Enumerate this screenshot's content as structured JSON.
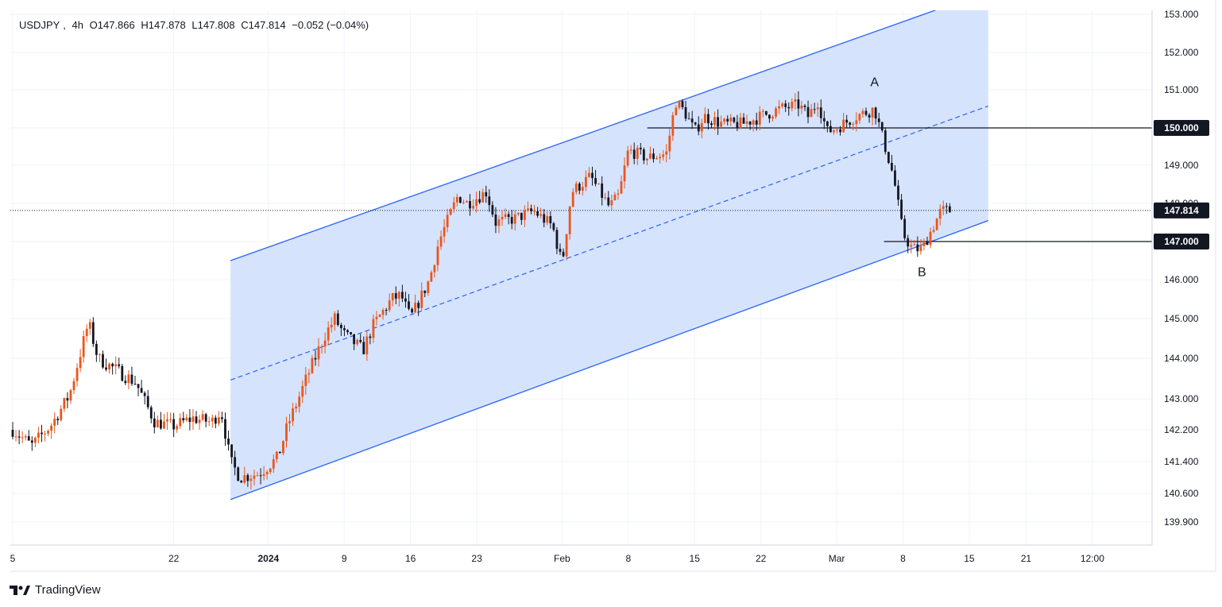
{
  "header": {
    "symbol": "USDJPY",
    "interval": "4h",
    "open": "O147.866",
    "high": "H147.878",
    "low": "L147.808",
    "close": "C147.814",
    "change": "−0.052 (−0.04%)"
  },
  "brand": "TradingView",
  "colors": {
    "up": "#e8571b",
    "down": "#131722",
    "channel_fill": "#d4e1fd",
    "channel_line": "#2962ff",
    "grid": "#f0f3fa"
  },
  "chart_data": {
    "type": "candlestick",
    "title": "USDJPY, 4h",
    "y_axis_ticks": [
      "153.000",
      "152.000",
      "151.000",
      "150.000",
      "149.000",
      "148.000",
      "147.000",
      "146.000",
      "145.000",
      "144.000",
      "143.000",
      "142.200",
      "141.400",
      "140.600",
      "139.900"
    ],
    "x_axis_ticks": [
      "5",
      "22",
      "2024",
      "9",
      "16",
      "23",
      "Feb",
      "8",
      "15",
      "22",
      "Mar",
      "8",
      "15",
      "21",
      "12:00"
    ],
    "price_labels": [
      {
        "name": "last",
        "text": "147.814",
        "value": 147.814
      },
      {
        "name": "level-150",
        "text": "150.000",
        "value": 150.0
      },
      {
        "name": "level-147",
        "text": "147.000",
        "value": 147.0
      }
    ],
    "annotations": [
      {
        "text": "A",
        "date": "2024-03-05",
        "price": 151.2
      },
      {
        "text": "B",
        "date": "2024-03-10",
        "price": 146.2
      }
    ],
    "channel": {
      "lower_start": {
        "date": "2023-12-28",
        "price": 140.45
      },
      "lower_end": {
        "date": "2024-03-17",
        "price": 147.55
      },
      "upper_start": {
        "date": "2023-12-28",
        "price": 146.5
      },
      "upper_end": {
        "date": "2024-03-17",
        "price": 153.6
      }
    },
    "horizontal_levels": [
      {
        "price": 150.0,
        "from": "2024-02-10"
      },
      {
        "price": 147.0,
        "from": "2024-03-06"
      }
    ],
    "path": [
      [
        "2023-12-05",
        142.2
      ],
      [
        "2023-12-07",
        141.8
      ],
      [
        "2023-12-09",
        142.3
      ],
      [
        "2023-12-11",
        143.1
      ],
      [
        "2023-12-13",
        144.9
      ],
      [
        "2023-12-14",
        144.0
      ],
      [
        "2023-12-16",
        143.7
      ],
      [
        "2023-12-18",
        143.4
      ],
      [
        "2023-12-20",
        142.4
      ],
      [
        "2023-12-22",
        142.3
      ],
      [
        "2023-12-24",
        142.5
      ],
      [
        "2023-12-26",
        142.4
      ],
      [
        "2023-12-27",
        142.7
      ],
      [
        "2023-12-28",
        141.4
      ],
      [
        "2023-12-29",
        141.0
      ],
      [
        "2023-12-31",
        141.1
      ],
      [
        "2024-01-02",
        141.5
      ],
      [
        "2024-01-03",
        142.3
      ],
      [
        "2024-01-05",
        143.5
      ],
      [
        "2024-01-07",
        144.6
      ],
      [
        "2024-01-08",
        145.0
      ],
      [
        "2024-01-09",
        144.6
      ],
      [
        "2024-01-11",
        144.2
      ],
      [
        "2024-01-12",
        144.8
      ],
      [
        "2024-01-14",
        145.5
      ],
      [
        "2024-01-15",
        145.6
      ],
      [
        "2024-01-16",
        145.0
      ],
      [
        "2024-01-18",
        146.0
      ],
      [
        "2024-01-19",
        147.0
      ],
      [
        "2024-01-21",
        148.2
      ],
      [
        "2024-01-22",
        148.0
      ],
      [
        "2024-01-24",
        148.3
      ],
      [
        "2024-01-25",
        147.5
      ],
      [
        "2024-01-27",
        147.6
      ],
      [
        "2024-01-29",
        147.8
      ],
      [
        "2024-01-31",
        147.4
      ],
      [
        "2024-02-01",
        146.4
      ],
      [
        "2024-02-02",
        148.3
      ],
      [
        "2024-02-04",
        148.7
      ],
      [
        "2024-02-06",
        147.9
      ],
      [
        "2024-02-07",
        148.2
      ],
      [
        "2024-02-08",
        149.4
      ],
      [
        "2024-02-10",
        149.2
      ],
      [
        "2024-02-12",
        149.3
      ],
      [
        "2024-02-13",
        150.7
      ],
      [
        "2024-02-14",
        150.4
      ],
      [
        "2024-02-15",
        149.9
      ],
      [
        "2024-02-16",
        150.3
      ],
      [
        "2024-02-18",
        150.1
      ],
      [
        "2024-02-20",
        150.1
      ],
      [
        "2024-02-22",
        150.3
      ],
      [
        "2024-02-24",
        150.5
      ],
      [
        "2024-02-26",
        150.6
      ],
      [
        "2024-02-27",
        150.3
      ],
      [
        "2024-02-28",
        150.7
      ],
      [
        "2024-02-29",
        149.9
      ],
      [
        "2024-03-01",
        150.0
      ],
      [
        "2024-03-03",
        150.3
      ],
      [
        "2024-03-05",
        150.5
      ],
      [
        "2024-03-06",
        149.6
      ],
      [
        "2024-03-07",
        148.7
      ],
      [
        "2024-03-08",
        147.2
      ],
      [
        "2024-03-09",
        146.8
      ],
      [
        "2024-03-10",
        146.8
      ],
      [
        "2024-03-11",
        147.3
      ],
      [
        "2024-03-12",
        147.8
      ],
      [
        "2024-03-13",
        147.81
      ]
    ],
    "grid": true,
    "grid_note": "light gridlines at each y tick and x tick"
  }
}
